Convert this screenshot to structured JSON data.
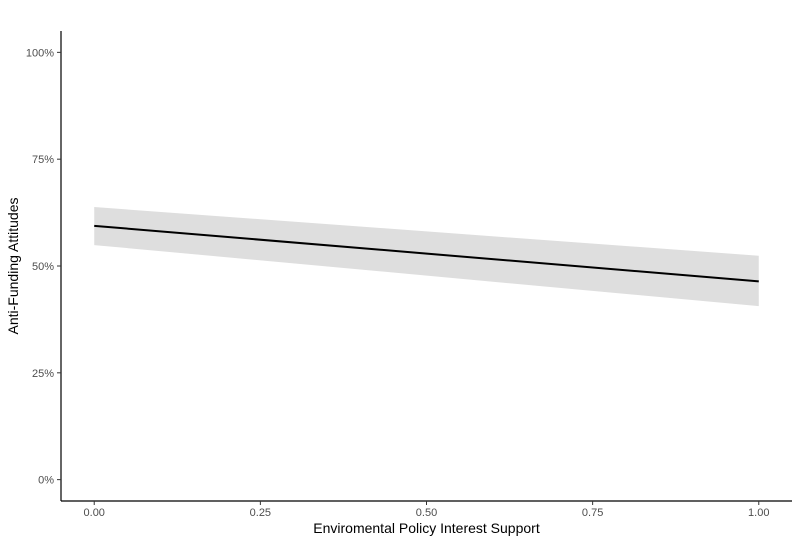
{
  "chart_data": {
    "type": "line",
    "xlabel": "Enviromental Policy Interest Support",
    "ylabel": "Anti-Funding Attitudes",
    "xlim": [
      -0.05,
      1.05
    ],
    "ylim": [
      -0.05,
      1.05
    ],
    "x_ticks": [
      0.0,
      0.25,
      0.5,
      0.75,
      1.0
    ],
    "x_tick_labels": [
      "0.00",
      "0.25",
      "0.50",
      "0.75",
      "1.00"
    ],
    "y_ticks": [
      0.0,
      0.25,
      0.5,
      0.75,
      1.0
    ],
    "y_tick_labels": [
      "0%",
      "25%",
      "50%",
      "75%",
      "100%"
    ],
    "grid": false,
    "line_color": "#000000",
    "band_color": "#dedede",
    "series": [
      {
        "x": [
          0.0,
          1.0
        ],
        "y": [
          0.594,
          0.464
        ],
        "ci_lower": [
          0.549,
          0.406
        ],
        "ci_upper": [
          0.638,
          0.524
        ]
      }
    ]
  }
}
